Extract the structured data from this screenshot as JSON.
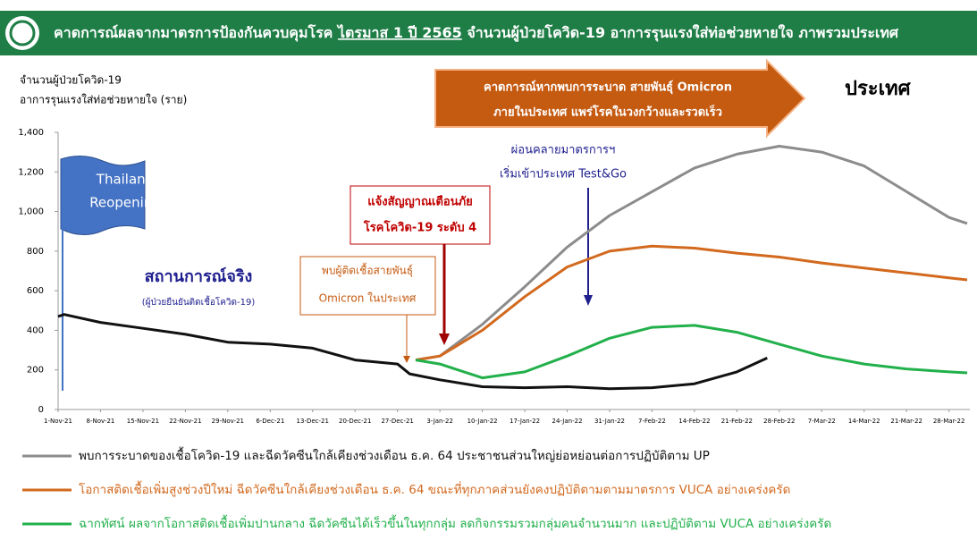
{
  "header": {
    "title_parts": [
      "คาดการณ์ผลจากมาตรการป้องกันควบคุมโรค ",
      "ไตรมาส 1 ปี 2565",
      " จำนวนผู้ป่วยโควิด-19 อาการรุนแรงใส่ท่อช่วยหายใจ ภาพรวมประเทศ"
    ]
  },
  "chart_data": {
    "type": "line",
    "y_label": [
      "จำนวนผู้ป่วยโควิด-19",
      "อาการรุนแรงใส่ท่อช่วยหายใจ (ราย)"
    ],
    "ylim": [
      0,
      1400
    ],
    "yticks": [
      0,
      200,
      400,
      600,
      800,
      {
        "value": 1000,
        "label": "1,000"
      },
      {
        "value": 1200,
        "label": "1,200"
      },
      {
        "value": 1400,
        "label": "1,400"
      }
    ],
    "xlim": [
      "2021-11-01",
      "2022-03-31"
    ],
    "xticks": [
      {
        "value": "2021-11-01",
        "label": "1-Nov-21"
      },
      {
        "value": "2021-11-08",
        "label": "8-Nov-21"
      },
      {
        "value": "2021-11-15",
        "label": "15-Nov-21"
      },
      {
        "value": "2021-11-22",
        "label": "22-Nov-21"
      },
      {
        "value": "2021-11-29",
        "label": "29-Nov-21"
      },
      {
        "value": "2021-12-06",
        "label": "6-Dec-21"
      },
      {
        "value": "2021-12-13",
        "label": "13-Dec-21"
      },
      {
        "value": "2021-12-20",
        "label": "20-Dec-21"
      },
      {
        "value": "2021-12-27",
        "label": "27-Dec-21"
      },
      {
        "value": "2022-01-03",
        "label": "3-Jan-22"
      },
      {
        "value": "2022-01-10",
        "label": "10-Jan-22"
      },
      {
        "value": "2022-01-17",
        "label": "17-Jan-22"
      },
      {
        "value": "2022-01-24",
        "label": "24-Jan-22"
      },
      {
        "value": "2022-01-31",
        "label": "31-Jan-22"
      },
      {
        "value": "2022-02-07",
        "label": "7-Feb-22"
      },
      {
        "value": "2022-02-14",
        "label": "14-Feb-22"
      },
      {
        "value": "2022-02-21",
        "label": "21-Feb-22"
      },
      {
        "value": "2022-02-28",
        "label": "28-Feb-22"
      },
      {
        "value": "2022-03-07",
        "label": "7-Mar-22"
      },
      {
        "value": "2022-03-14",
        "label": "14-Mar-22"
      },
      {
        "value": "2022-03-21",
        "label": "21-Mar-22"
      },
      {
        "value": "2022-03-28",
        "label": "28-Mar-22"
      }
    ],
    "series": [
      {
        "name": "สถานการณ์จริง",
        "color": "#111111",
        "x": [
          "2021-11-01",
          "2021-11-02",
          "2021-11-08",
          "2021-11-15",
          "2021-11-22",
          "2021-11-29",
          "2021-12-06",
          "2021-12-13",
          "2021-12-20",
          "2021-12-27",
          "2021-12-29",
          "2022-01-03",
          "2022-01-10",
          "2022-01-17",
          "2022-01-24",
          "2022-01-31",
          "2022-02-07",
          "2022-02-14",
          "2022-02-21",
          "2022-02-26"
        ],
        "values": [
          470,
          480,
          440,
          410,
          380,
          340,
          330,
          310,
          250,
          230,
          180,
          150,
          115,
          110,
          115,
          105,
          110,
          130,
          190,
          260
        ]
      },
      {
        "name": "พบการระบาดของเชื้อโควิด-19 และฉีดวัคซีนใกล้เคียงช่วงเดือน ธ.ค. 64 ประชาชนส่วนใหญ่ย่อหย่อนต่อการปฏิบัติตาม UP",
        "color": "#8c8c8c",
        "x": [
          "2021-12-30",
          "2022-01-03",
          "2022-01-10",
          "2022-01-17",
          "2022-01-24",
          "2022-01-31",
          "2022-02-07",
          "2022-02-14",
          "2022-02-21",
          "2022-02-28",
          "2022-03-07",
          "2022-03-14",
          "2022-03-21",
          "2022-03-28",
          "2022-03-31"
        ],
        "values": [
          250,
          270,
          430,
          620,
          820,
          980,
          1100,
          1220,
          1290,
          1330,
          1300,
          1230,
          1100,
          970,
          940
        ]
      },
      {
        "name": "โอกาสติดเชื้อเพิ่มสูงช่วงปีใหม่ ฉีดวัคซีนใกล้เคียงช่วงเดือน ธ.ค. 64 ขณะที่ทุกภาคส่วนยังคงปฏิบัติตามตามมาตรการ VUCA อย่างเคร่งครัด",
        "color": "#d2691e",
        "x": [
          "2021-12-30",
          "2022-01-03",
          "2022-01-10",
          "2022-01-17",
          "2022-01-24",
          "2022-01-31",
          "2022-02-07",
          "2022-02-14",
          "2022-02-21",
          "2022-02-28",
          "2022-03-07",
          "2022-03-14",
          "2022-03-21",
          "2022-03-28",
          "2022-03-31"
        ],
        "values": [
          250,
          270,
          400,
          570,
          720,
          800,
          825,
          815,
          790,
          770,
          740,
          715,
          690,
          665,
          655
        ]
      },
      {
        "name": "ฉากทัศน์ ผลจากโอกาสติดเชื้อเพิ่มปานกลาง ฉีดวัคซีนได้เร็วขึ้นในทุกกลุ่ม ลดกิจกรรมรวมกลุ่มคนจำนวนมาก และปฏิบัติตาม VUCA อย่างเคร่งครัด",
        "color": "#22b04b",
        "x": [
          "2021-12-30",
          "2022-01-03",
          "2022-01-10",
          "2022-01-17",
          "2022-01-24",
          "2022-01-31",
          "2022-02-07",
          "2022-02-14",
          "2022-02-21",
          "2022-02-28",
          "2022-03-07",
          "2022-03-14",
          "2022-03-21",
          "2022-03-28",
          "2022-03-31"
        ],
        "values": [
          250,
          230,
          160,
          190,
          270,
          360,
          415,
          425,
          390,
          330,
          270,
          230,
          205,
          190,
          185
        ]
      }
    ],
    "annotations": {
      "actual_note": "(ผู้ป่วยยืนยันติดเชื้อโควิด-19)",
      "reopening": [
        "Thailand",
        "Reopening"
      ],
      "omicron_found": [
        "พบผู้ติดเชื้อสายพันธุ์",
        "Omicron ในประเทศ"
      ],
      "alert": [
        "แจ้งสัญญาณเตือนภัย",
        "โรคโควิด-19 ระดับ 4"
      ],
      "relax": [
        "ผ่อนคลายมาตรการฯ",
        "เริ่มเข้าประเทศ Test&Go"
      ],
      "forecast": [
        "คาดการณ์หากพบการระบาด สายพันธุ์ Omicron",
        "ภายในประเทศ แพร่โรคในวงกว้างและรวดเร็ว"
      ],
      "scope": "ประเทศ"
    }
  }
}
